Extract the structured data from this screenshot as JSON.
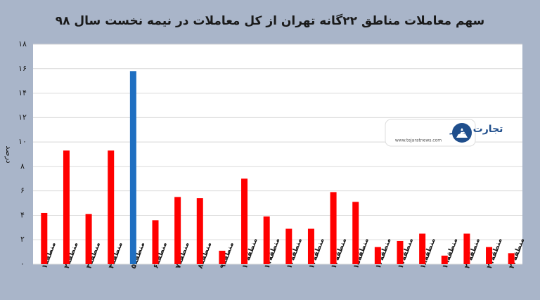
{
  "chart_data": {
    "type": "bar",
    "title": "سهم معاملات مناطق ۲۲گانه تهران از کل معاملات در نیمه نخست سال ۹۸",
    "y_label": "درصد",
    "watermark": {
      "name": "تجارت نیوز",
      "url": "www.tejaratnews.com"
    },
    "categories": [
      "منطقه۱",
      "منطقه۲",
      "منطقه۳",
      "منطقه۴",
      "منطقه۵",
      "منطقه۶",
      "منطقه۷",
      "منطقه۸",
      "منطقه۹",
      "منطقه۱۰",
      "منطقه۱۱",
      "منطقه۱۲",
      "منطقه۱۳",
      "منطقه۱۴",
      "منطقه۱۵",
      "منطقه۱۶",
      "منطقه۱۷",
      "منطقه۱۸",
      "منطقه۱۹",
      "منطقه۲۰",
      "منطقه۲۱",
      "منطقه۲۲"
    ],
    "values": [
      4.2,
      9.3,
      4.1,
      9.3,
      15.8,
      3.6,
      5.5,
      5.4,
      1.1,
      7.0,
      3.9,
      2.9,
      2.9,
      5.9,
      5.1,
      1.4,
      1.9,
      2.5,
      0.7,
      2.5,
      1.4,
      0.9
    ],
    "colors": [
      "#ff0000",
      "#ff0000",
      "#ff0000",
      "#ff0000",
      "#1f6fc1",
      "#ff0000",
      "#ff0000",
      "#ff0000",
      "#ff0000",
      "#ff0000",
      "#ff0000",
      "#ff0000",
      "#ff0000",
      "#ff0000",
      "#ff0000",
      "#ff0000",
      "#ff0000",
      "#ff0000",
      "#ff0000",
      "#ff0000",
      "#ff0000",
      "#ff0000"
    ],
    "ylim": [
      0,
      18
    ],
    "yticks": [
      {
        "value": 0,
        "label": "۰"
      },
      {
        "value": 2,
        "label": "۲"
      },
      {
        "value": 4,
        "label": "۴"
      },
      {
        "value": 6,
        "label": "۶"
      },
      {
        "value": 8,
        "label": "۸"
      },
      {
        "value": 10,
        "label": "۱۰"
      },
      {
        "value": 12,
        "label": "۱۲"
      },
      {
        "value": 14,
        "label": "۱۴"
      },
      {
        "value": 16,
        "label": "۱۶"
      },
      {
        "value": 18,
        "label": "۱۸"
      }
    ],
    "grid": true
  }
}
